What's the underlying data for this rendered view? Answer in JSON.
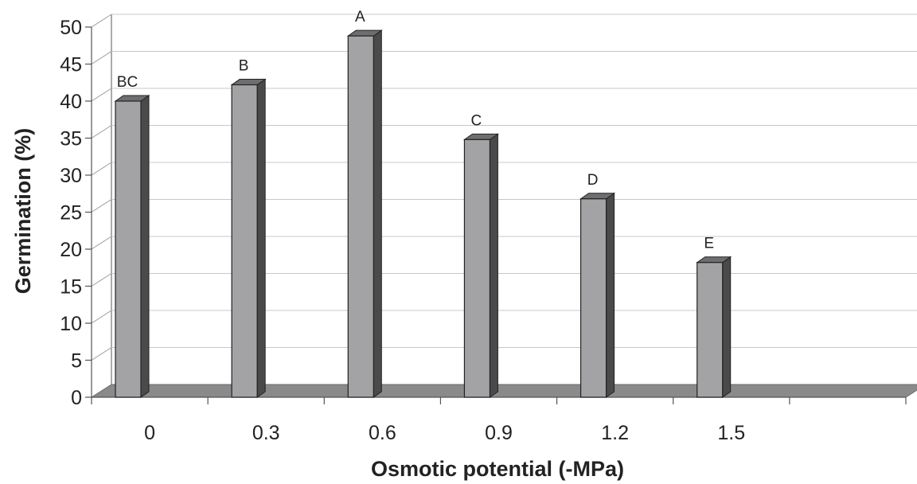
{
  "chart_data": {
    "type": "bar",
    "title": "",
    "xlabel": "Osmotic potential (-MPa)",
    "ylabel": "Germination (%)",
    "categories": [
      "0",
      "0.3",
      "0.6",
      "0.9",
      "1.2",
      "1.5"
    ],
    "series": [
      {
        "values": [
          40,
          42.2,
          48.8,
          34.8,
          26.8,
          18.2
        ]
      }
    ],
    "data_labels": [
      "BC",
      "B",
      "A",
      "C",
      "D",
      "E"
    ],
    "ylim": [
      0,
      50
    ],
    "yticks": [
      0,
      5,
      10,
      15,
      20,
      25,
      30,
      35,
      40,
      45,
      50
    ],
    "grid": true,
    "legend": "none",
    "style": "3d-column",
    "colors": {
      "bar_front": "#a3a3a6",
      "bar_side": "#4a4a4a",
      "bar_top": "#6e6e6e",
      "floor": "#8a8a8a",
      "grid": "#c8c8c8",
      "axis": "#555555"
    }
  }
}
